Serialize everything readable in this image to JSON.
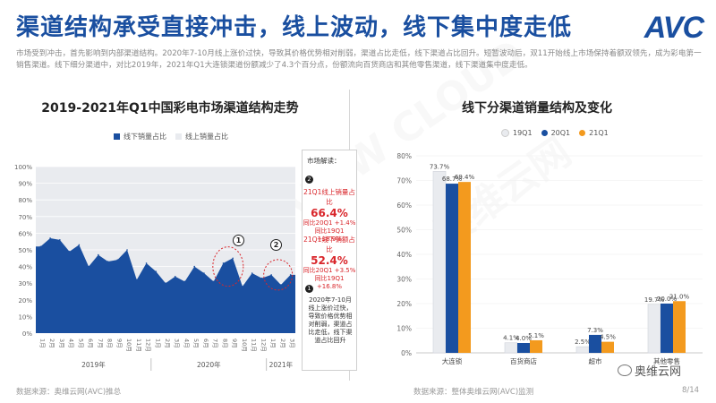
{
  "header": {
    "title": "渠道结构承受直接冲击，线上波动，线下集中度走低",
    "logo": "AVC",
    "description": "市场受到冲击，首先影响到内部渠道结构。2020年7-10月线上涨价过快，导致其价格优势相对削弱，渠道占比走低，线下渠道占比回升。短暂波动后，双11开始线上市场保持着额双领先，成为彩电第一销售渠道。线下细分渠道中，对比2019年，2021年Q1大连锁渠道份额减少了4.3个百分点，份额流向百货商店和其他零售渠道，线下渠道集中度走低。"
  },
  "left_chart_title": "2019-2021年Q1中国彩电市场渠道结构走势",
  "right_chart_title": "线下分渠道销量结构及变化",
  "panel": {
    "header": "市场解读：",
    "num1": "2",
    "block1_title": "21Q1线上销量占比",
    "block1_value": "66.4%",
    "block1_line1": "同比20Q1 +1.4%",
    "block1_line2": "同比19Q1 +18.9%",
    "block2_title": "21Q1线下销额占比",
    "block2_value": "52.4%",
    "block2_line1": "同比20Q1 +3.5%",
    "block2_line2": "同比19Q1 +16.8%",
    "num2": "1",
    "note": "2020年7-10月线上涨价过快，导致价格优势相对削弱，渠道占比走低，线下渠道占比回升"
  },
  "annotations": {
    "c1": "1",
    "c2": "2"
  },
  "watermark": {
    "cn": "奥维云网",
    "en": "ALL VIEW CLOUD"
  },
  "footer": {
    "left": "数据来源：奥维云网(AVC)推总",
    "mid": "数据来源：整体奥维云网(AVC)监测",
    "page": "8/14"
  },
  "wechat": "奥维云网",
  "colors": {
    "blue": "#1a4fa0",
    "light": "#e9ebef",
    "orange": "#f39a1e",
    "red": "#d9262b"
  },
  "chart_data": [
    {
      "type": "area",
      "title": "2019-2021年Q1中国彩电市场渠道结构走势",
      "legend": [
        "线下销量占比",
        "线上销量占比"
      ],
      "legend_position": "top-left",
      "x": [
        "1月",
        "2月",
        "3月",
        "4月",
        "5月",
        "6月",
        "7月",
        "8月",
        "9月",
        "10月",
        "11月",
        "12月",
        "1月",
        "2月",
        "3月",
        "4月",
        "5月",
        "6月",
        "7月",
        "8月",
        "9月",
        "10月",
        "11月",
        "12月",
        "1月",
        "2月",
        "3月"
      ],
      "year_labels": [
        "2019年",
        "2020年",
        "2021年"
      ],
      "y_ticks": [
        "0%",
        "10%",
        "20%",
        "30%",
        "40%",
        "50%",
        "60%",
        "70%",
        "80%",
        "90%",
        "100%"
      ],
      "ylim": [
        0,
        100
      ],
      "series": [
        {
          "name": "线下销量占比",
          "values": [
            52,
            57,
            56,
            49,
            53,
            40,
            47,
            43,
            44,
            50,
            32,
            42,
            37,
            30,
            34,
            31,
            40,
            36,
            31,
            42,
            45,
            28,
            36,
            33,
            35,
            29,
            35
          ]
        },
        {
          "name": "线上销量占比",
          "values": [
            48,
            43,
            44,
            51,
            47,
            60,
            53,
            57,
            56,
            50,
            68,
            58,
            63,
            70,
            66,
            69,
            60,
            64,
            69,
            58,
            55,
            72,
            64,
            67,
            65,
            71,
            65
          ]
        }
      ]
    },
    {
      "type": "bar",
      "title": "线下分渠道销量结构及变化",
      "categories": [
        "大连锁",
        "百货商店",
        "超市",
        "其他零售"
      ],
      "legend_position": "top",
      "y_ticks": [
        "0%",
        "10%",
        "20%",
        "30%",
        "40%",
        "50%",
        "60%",
        "70%",
        "80%"
      ],
      "ylim": [
        0,
        80
      ],
      "series": [
        {
          "name": "19Q1",
          "values": [
            73.7,
            4.1,
            2.5,
            19.7
          ],
          "labels": [
            "73.7%",
            "4.1%",
            "2.5%",
            "19.7%"
          ]
        },
        {
          "name": "20Q1",
          "values": [
            68.7,
            4.0,
            7.3,
            20.0
          ],
          "labels": [
            "68.7%",
            "4.0%",
            "7.3%",
            "20.0%"
          ]
        },
        {
          "name": "21Q1",
          "values": [
            69.4,
            5.1,
            4.5,
            21.0
          ],
          "labels": [
            "69.4%",
            "5.1%",
            "4.5%",
            "21.0%"
          ]
        }
      ]
    }
  ]
}
